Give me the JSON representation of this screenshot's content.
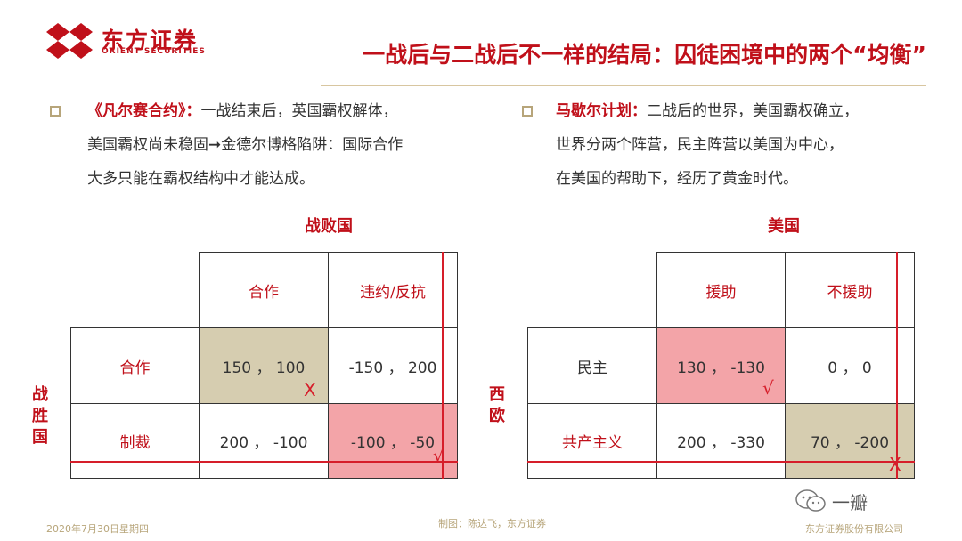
{
  "header": {
    "brand_cn": "东方证券",
    "brand_en": "ORIENT SECURITIES",
    "title": "一战后与二战后不一样的结局：囚徒困境中的两个“均衡”"
  },
  "left": {
    "keyword": "《凡尔赛合约》：",
    "text1": "一战结束后，英国霸权解体，",
    "text2": "美国霸权尚未稳固➞金德尔博格陷阱：国际合作",
    "text3": "大多只能在霸权结构中才能达成。",
    "col_player": "战败国",
    "row_player": [
      "战",
      "胜",
      "国"
    ],
    "col_headers": [
      "合作",
      "违约/反抗"
    ],
    "row_headers": [
      "合作",
      "制裁"
    ],
    "cells": [
      [
        "150 ， 100",
        "-150 ， 200"
      ],
      [
        "200 ， -100",
        "-100 ， -50"
      ]
    ],
    "marks": [
      "X",
      "√"
    ]
  },
  "right": {
    "keyword": "马歇尔计划：",
    "text1": "二战后的世界，美国霸权确立，",
    "text2": "世界分两个阵营，民主阵营以美国为中心，",
    "text3": "在美国的帮助下，经历了黄金时代。",
    "col_player": "美国",
    "row_player": [
      "西",
      "欧"
    ],
    "col_headers": [
      "援助",
      "不援助"
    ],
    "row_headers": [
      "民主",
      "共产主义"
    ],
    "cells": [
      [
        "130 ， -130",
        "0 ， 0"
      ],
      [
        "200 ， -330",
        "70 ， -200"
      ]
    ],
    "marks": [
      "√",
      "X"
    ]
  },
  "footer": {
    "date": "2020年7月30日星期四",
    "credit": "制图：陈达飞，东方证券",
    "company": "东方证券股份有限公司",
    "watermark": "一瓣"
  },
  "colors": {
    "brand_red": "#c0101a",
    "tan": "#d6cdb0",
    "pink": "#f3a4a8"
  }
}
